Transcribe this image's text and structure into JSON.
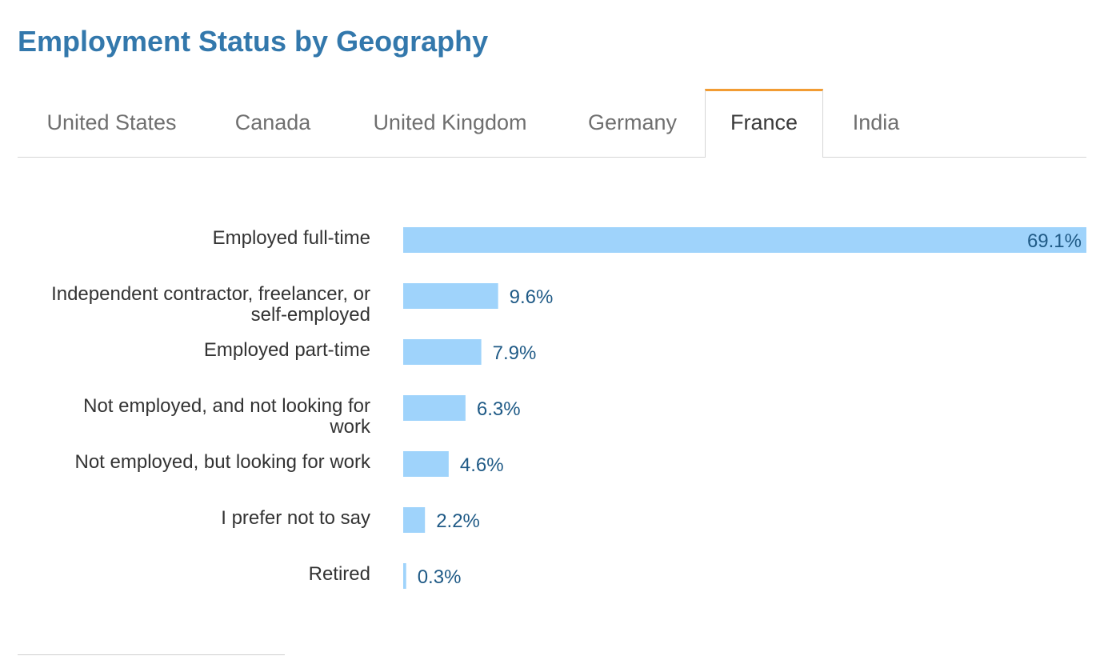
{
  "title": "Employment Status by Geography",
  "tabs": [
    {
      "label": "United States",
      "active": false
    },
    {
      "label": "Canada",
      "active": false
    },
    {
      "label": "United Kingdom",
      "active": false
    },
    {
      "label": "Germany",
      "active": false
    },
    {
      "label": "France",
      "active": true
    },
    {
      "label": "India",
      "active": false
    }
  ],
  "colors": {
    "title": "#3378ac",
    "bar": "#9fd3fb",
    "value_label": "#1f5a86",
    "category_label": "#333333",
    "active_tab_accent": "#f29c33"
  },
  "chart_data": {
    "type": "bar",
    "orientation": "horizontal",
    "categories": [
      [
        "Employed full-time"
      ],
      [
        "Independent contractor, freelancer, or",
        "self-employed"
      ],
      [
        "Employed part-time"
      ],
      [
        "Not employed, and not looking for",
        "work"
      ],
      [
        "Not employed, but looking for work"
      ],
      [
        "I prefer not to say"
      ],
      [
        "Retired"
      ]
    ],
    "values": [
      69.1,
      9.6,
      7.9,
      6.3,
      4.6,
      2.2,
      0.3
    ],
    "value_labels": [
      "69.1%",
      "9.6%",
      "7.9%",
      "6.3%",
      "4.6%",
      "2.2%",
      "0.3%"
    ],
    "unit": "%",
    "xlim": [
      0,
      69.1
    ],
    "grid": false,
    "legend": "none"
  }
}
